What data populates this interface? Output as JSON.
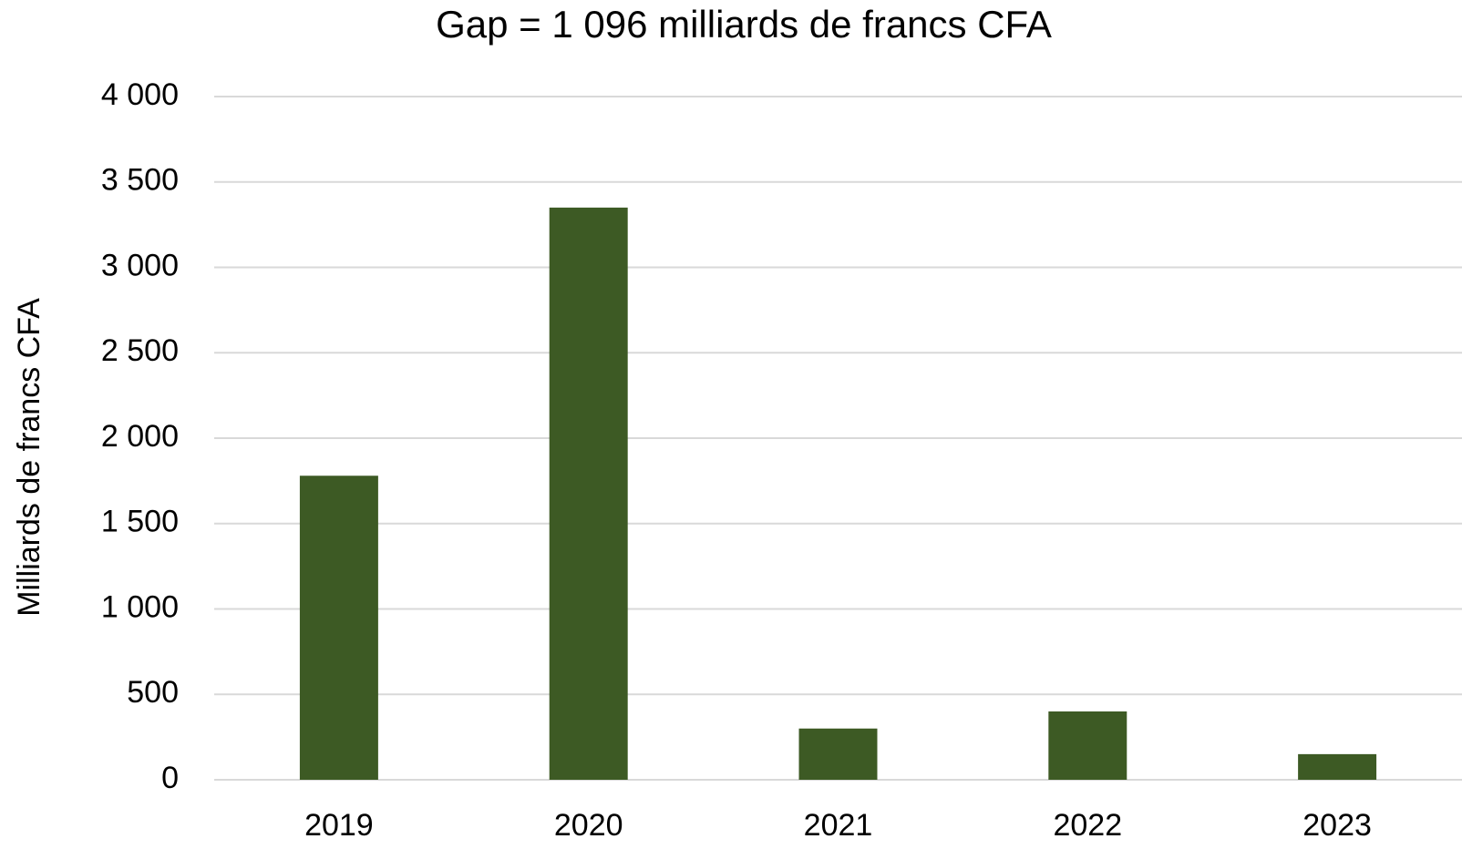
{
  "chart_data": {
    "type": "bar",
    "title": "Gap = 1 096 milliards de francs CFA",
    "y_label": "Milliards de francs CFA",
    "categories": [
      "2019",
      "2020",
      "2021",
      "2022",
      "2023"
    ],
    "values": [
      1780,
      3350,
      300,
      400,
      150
    ],
    "color": "#3d5a24",
    "ylim": [
      0,
      4000
    ],
    "yticks": [
      0,
      500,
      {
        "value": 1000,
        "label": "1 000"
      },
      {
        "value": 1500,
        "label": "1 500"
      },
      {
        "value": 2000,
        "label": "2 000"
      },
      {
        "value": 2500,
        "label": "2 500"
      },
      {
        "value": 3000,
        "label": "3 000"
      },
      {
        "value": 3500,
        "label": "3 500"
      },
      {
        "value": 4000,
        "label": "4 000"
      }
    ],
    "grid": true
  }
}
